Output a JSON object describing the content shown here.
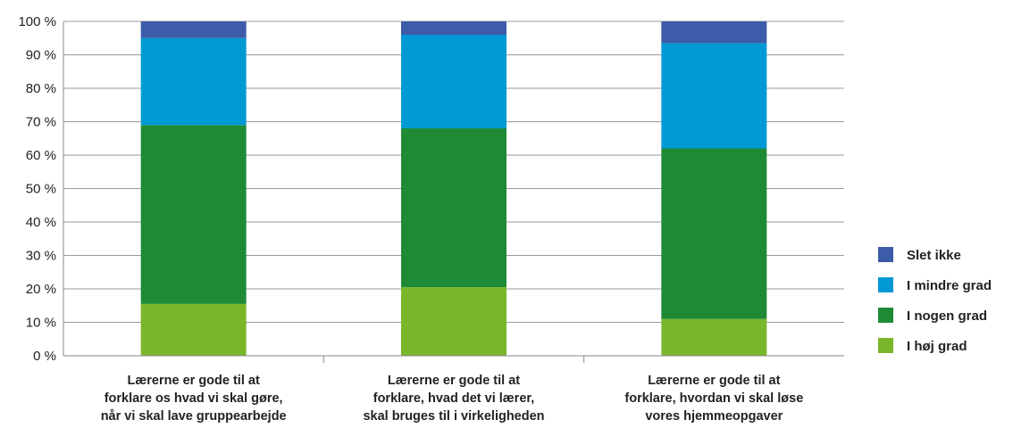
{
  "chart_data": {
    "type": "bar",
    "stacked": true,
    "title": "",
    "xlabel": "",
    "ylabel": "",
    "ylim": [
      0,
      100
    ],
    "y_ticks": [
      0,
      10,
      20,
      30,
      40,
      50,
      60,
      70,
      80,
      90,
      100
    ],
    "y_tick_suffix": " %",
    "y_tick_labels": [
      "0 %",
      "10 %",
      "20 %",
      "30 %",
      "40 %",
      "50 %",
      "60 %",
      "70 %",
      "80 %",
      "90 %",
      "100 %"
    ],
    "grid": true,
    "legend_position": "right",
    "categories": [
      [
        "Lærerne er gode til at",
        "forklare os hvad vi skal gøre,",
        "når vi skal lave gruppearbejde"
      ],
      [
        "Lærerne er gode til at",
        "forklare, hvad det vi lærer,",
        "skal bruges til i virkeligheden"
      ],
      [
        "Lærerne er gode til at",
        "forklare, hvordan vi skal løse",
        "vores hjemmeopgaver"
      ]
    ],
    "series": [
      {
        "name": "I høj grad",
        "color": "#7ab62a",
        "values": [
          15.5,
          20.5,
          11
        ]
      },
      {
        "name": "I nogen grad",
        "color": "#1f8a36",
        "values": [
          53.5,
          47.5,
          51
        ]
      },
      {
        "name": "I mindre grad",
        "color": "#0099d4",
        "values": [
          26,
          28,
          31.5
        ]
      },
      {
        "name": "Slet ikke",
        "color": "#3c5ba8",
        "values": [
          5,
          4,
          6.5
        ]
      }
    ],
    "legend_order": [
      "Slet ikke",
      "I mindre grad",
      "I nogen grad",
      "I høj grad"
    ]
  }
}
